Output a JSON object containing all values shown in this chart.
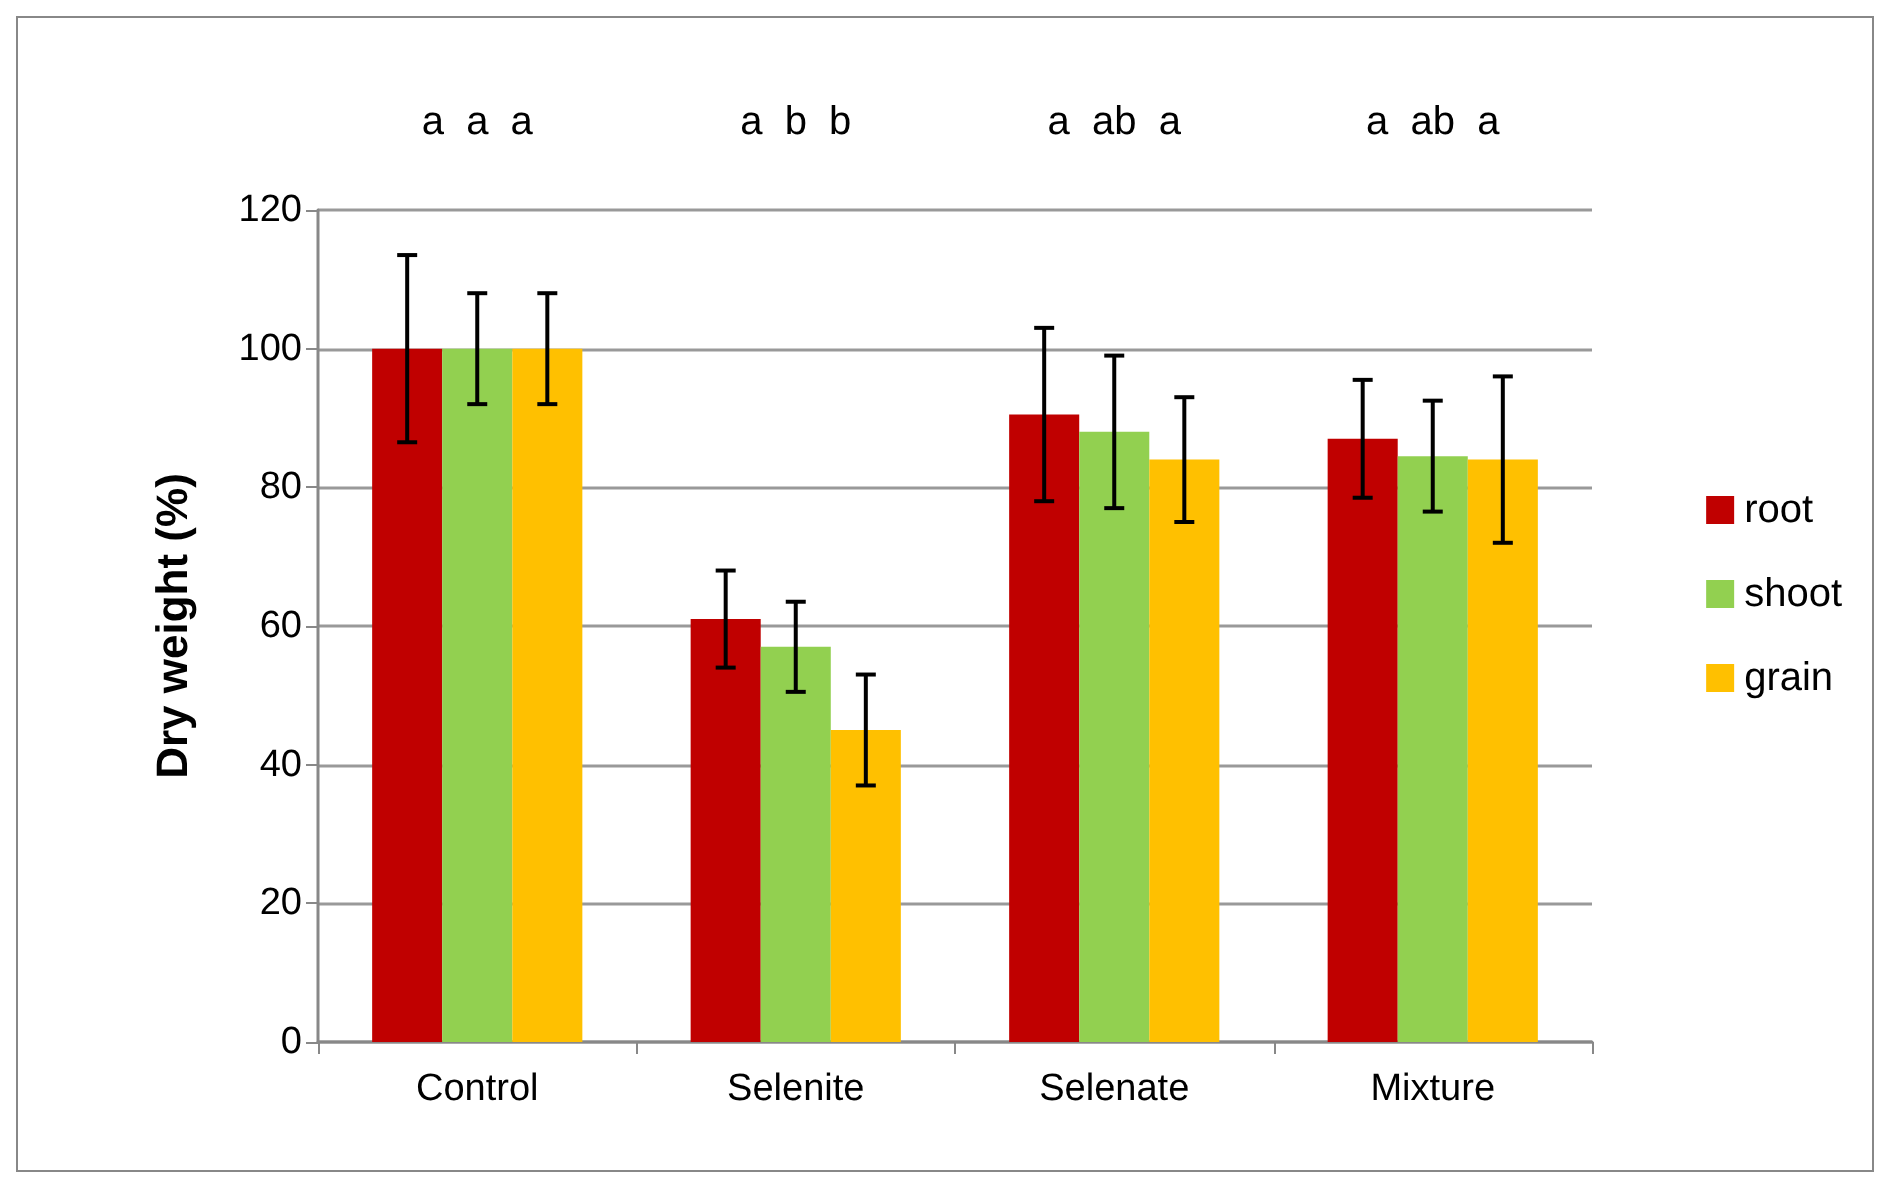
{
  "chart_data": {
    "type": "bar",
    "ylabel": "Dry weight (%)",
    "categories": [
      "Control",
      "Selenite",
      "Selenate",
      "Mixture"
    ],
    "series": [
      {
        "name": "root",
        "color": "#c00000",
        "values": [
          100,
          61,
          90.5,
          87
        ],
        "errors": [
          13.5,
          7,
          12.5,
          8.5
        ]
      },
      {
        "name": "shoot",
        "color": "#92d050",
        "values": [
          100,
          57,
          88,
          84.5
        ],
        "errors": [
          8,
          6.5,
          11,
          8
        ]
      },
      {
        "name": "grain",
        "color": "#ffc000",
        "values": [
          100,
          45,
          84,
          84
        ],
        "errors": [
          8,
          8,
          9,
          12
        ]
      }
    ],
    "ylim": [
      0,
      120
    ],
    "yticks": [
      0,
      20,
      40,
      60,
      80,
      100,
      120
    ],
    "grid": "y",
    "legend": "right",
    "annotations": [
      "a  a  a",
      "a  b  b",
      "a  ab  a",
      "a  ab  a"
    ]
  }
}
